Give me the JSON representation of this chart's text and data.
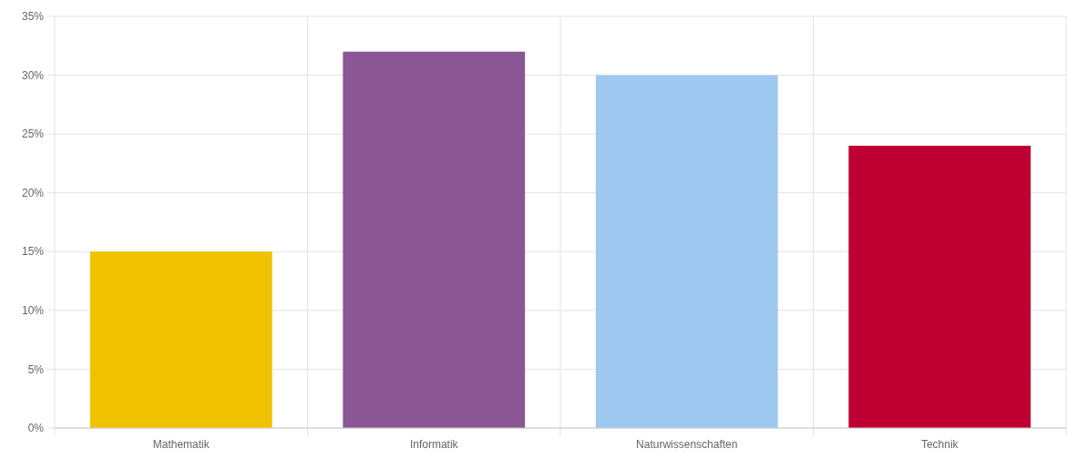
{
  "chart_data": {
    "type": "bar",
    "categories": [
      "Mathematik",
      "Informatik",
      "Naturwissenschaften",
      "Technik"
    ],
    "values": [
      15,
      32,
      30,
      24
    ],
    "colors": [
      "#f0c200",
      "#8a5794",
      "#9fc8f0",
      "#be0032"
    ],
    "ylim": [
      0,
      35
    ],
    "yticks": [
      {
        "value": 0,
        "label": "0%"
      },
      {
        "value": 5,
        "label": "5%"
      },
      {
        "value": 10,
        "label": "10%"
      },
      {
        "value": 15,
        "label": "15%"
      },
      {
        "value": 20,
        "label": "20%"
      },
      {
        "value": 25,
        "label": "25%"
      },
      {
        "value": 30,
        "label": "30%"
      },
      {
        "value": 35,
        "label": "35%"
      }
    ],
    "grid": true
  }
}
